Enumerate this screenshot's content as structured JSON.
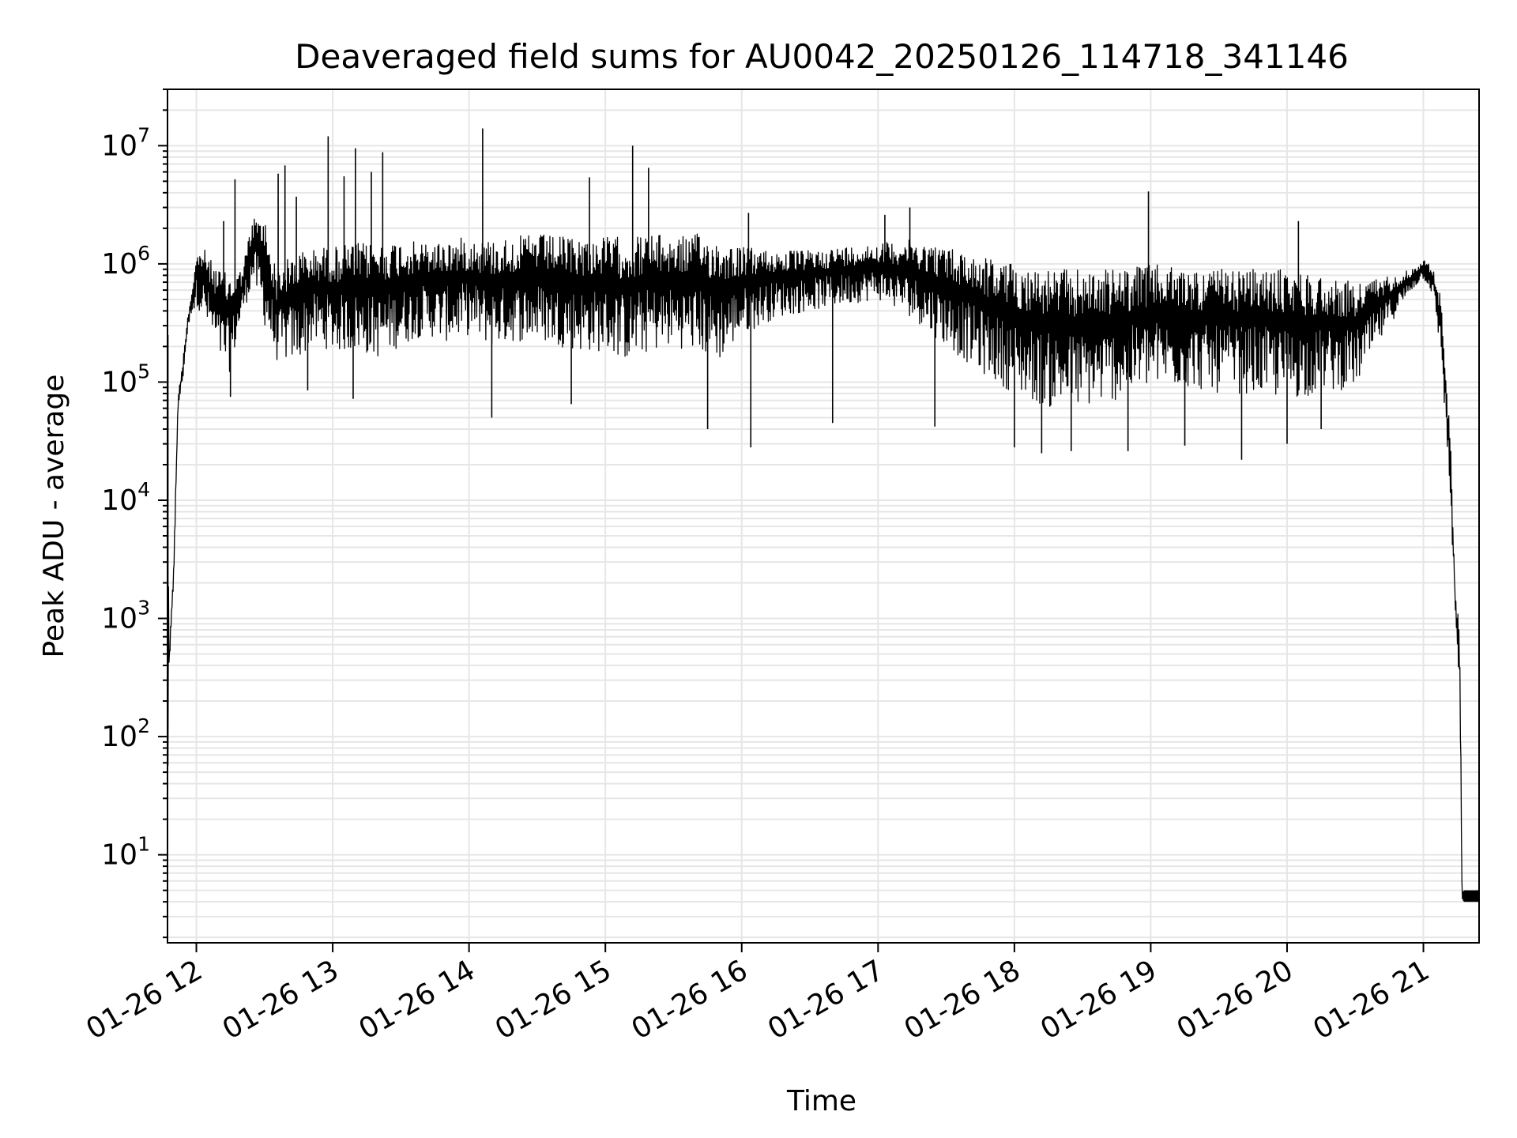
{
  "chart_data": {
    "type": "line",
    "title": "Deaveraged field sums for AU0042_20250126_114718_341146",
    "xlabel": "Time",
    "ylabel": "Peak ADU - average",
    "yscale": "log",
    "ylim": [
      1.8,
      30000000
    ],
    "xlim": [
      "2025-01-26 11:47:18",
      "2025-01-26 21:24:30"
    ],
    "grid": true,
    "legend": "none",
    "line_color": "#000000",
    "grid_color": "#e6e6e6",
    "x_ticks": [
      {
        "value": "2025-01-26 12:00",
        "label": "01-26 12"
      },
      {
        "value": "2025-01-26 13:00",
        "label": "01-26 13"
      },
      {
        "value": "2025-01-26 14:00",
        "label": "01-26 14"
      },
      {
        "value": "2025-01-26 15:00",
        "label": "01-26 15"
      },
      {
        "value": "2025-01-26 16:00",
        "label": "01-26 16"
      },
      {
        "value": "2025-01-26 17:00",
        "label": "01-26 17"
      },
      {
        "value": "2025-01-26 18:00",
        "label": "01-26 18"
      },
      {
        "value": "2025-01-26 19:00",
        "label": "01-26 19"
      },
      {
        "value": "2025-01-26 20:00",
        "label": "01-26 20"
      },
      {
        "value": "2025-01-26 21:00",
        "label": "01-26 21"
      }
    ],
    "y_ticks": [
      {
        "value": 10,
        "base": "10",
        "exp": "1"
      },
      {
        "value": 100,
        "base": "10",
        "exp": "2"
      },
      {
        "value": 1000,
        "base": "10",
        "exp": "3"
      },
      {
        "value": 10000,
        "base": "10",
        "exp": "4"
      },
      {
        "value": 100000,
        "base": "10",
        "exp": "5"
      },
      {
        "value": 1000000,
        "base": "10",
        "exp": "6"
      },
      {
        "value": 10000000,
        "base": "10",
        "exp": "7"
      }
    ],
    "series": [
      {
        "x": [
          "2025-01-26 11:47:18",
          "2025-01-26 11:48:00",
          "2025-01-26 11:50:00",
          "2025-01-26 11:52:00",
          "2025-01-26 11:54:00",
          "2025-01-26 11:56:00",
          "2025-01-26 11:58:00",
          "2025-01-26 12:00:00",
          "2025-01-26 12:03:00",
          "2025-01-26 12:06:00",
          "2025-01-26 12:10:00",
          "2025-01-26 12:15:00",
          "2025-01-26 12:20:00",
          "2025-01-26 12:25:00",
          "2025-01-26 12:30:00",
          "2025-01-26 12:35:00",
          "2025-01-26 12:40:00",
          "2025-01-26 12:45:00",
          "2025-01-26 12:50:00",
          "2025-01-26 12:55:00",
          "2025-01-26 13:00:00",
          "2025-01-26 13:10:00",
          "2025-01-26 13:20:00",
          "2025-01-26 13:30:00",
          "2025-01-26 13:40:00",
          "2025-01-26 13:50:00",
          "2025-01-26 14:00:00",
          "2025-01-26 14:10:00",
          "2025-01-26 14:20:00",
          "2025-01-26 14:30:00",
          "2025-01-26 14:40:00",
          "2025-01-26 14:50:00",
          "2025-01-26 15:00:00",
          "2025-01-26 15:10:00",
          "2025-01-26 15:20:00",
          "2025-01-26 15:30:00",
          "2025-01-26 15:40:00",
          "2025-01-26 15:50:00",
          "2025-01-26 16:00:00",
          "2025-01-26 16:15:00",
          "2025-01-26 16:30:00",
          "2025-01-26 16:45:00",
          "2025-01-26 17:00:00",
          "2025-01-26 17:15:00",
          "2025-01-26 17:30:00",
          "2025-01-26 17:45:00",
          "2025-01-26 18:00:00",
          "2025-01-26 18:15:00",
          "2025-01-26 18:30:00",
          "2025-01-26 18:45:00",
          "2025-01-26 19:00:00",
          "2025-01-26 19:15:00",
          "2025-01-26 19:30:00",
          "2025-01-26 19:45:00",
          "2025-01-26 20:00:00",
          "2025-01-26 20:15:00",
          "2025-01-26 20:30:00",
          "2025-01-26 20:45:00",
          "2025-01-26 20:55:00",
          "2025-01-26 21:00:00",
          "2025-01-26 21:04:00",
          "2025-01-26 21:08:00",
          "2025-01-26 21:12:00",
          "2025-01-26 21:14:00",
          "2025-01-26 21:16:00",
          "2025-01-26 21:17:00",
          "2025-01-26 21:18:00",
          "2025-01-26 21:24:30"
        ],
        "low": [
          4,
          300,
          2000,
          60000,
          100000,
          250000,
          400000,
          450000,
          350000,
          250000,
          150000,
          120000,
          350000,
          700000,
          300000,
          150000,
          150000,
          150000,
          200000,
          200000,
          180000,
          180000,
          160000,
          200000,
          250000,
          220000,
          250000,
          200000,
          220000,
          220000,
          200000,
          180000,
          180000,
          150000,
          180000,
          200000,
          180000,
          150000,
          250000,
          350000,
          400000,
          450000,
          500000,
          350000,
          200000,
          120000,
          80000,
          60000,
          60000,
          70000,
          90000,
          90000,
          80000,
          80000,
          70000,
          80000,
          90000,
          300000,
          600000,
          750000,
          550000,
          150000,
          8000,
          1200,
          150,
          4,
          4,
          4
        ],
        "high": [
          250000,
          500,
          3000,
          80000,
          150000,
          350000,
          600000,
          1200000,
          1400000,
          1100000,
          900000,
          800000,
          900000,
          2500000,
          2500000,
          900000,
          1100000,
          1300000,
          1300000,
          1400000,
          1400000,
          1500000,
          1500000,
          1600000,
          1500000,
          1600000,
          1700000,
          1600000,
          1700000,
          1800000,
          1700000,
          1700000,
          1700000,
          1700000,
          1800000,
          1700000,
          1800000,
          1600000,
          1400000,
          1300000,
          1300000,
          1400000,
          1500000,
          1600000,
          1400000,
          1200000,
          1000000,
          900000,
          900000,
          900000,
          1000000,
          900000,
          900000,
          900000,
          900000,
          800000,
          700000,
          800000,
          900000,
          1100000,
          950000,
          500000,
          30000,
          1600,
          1000,
          5,
          5,
          5
        ],
        "spikes": [
          {
            "x": "2025-01-26 11:47:30",
            "y": 250000
          },
          {
            "x": "2025-01-26 11:59:00",
            "y": 420000
          },
          {
            "x": "2025-01-26 12:12:00",
            "y": 2300000
          },
          {
            "x": "2025-01-26 12:17:00",
            "y": 5200000
          },
          {
            "x": "2025-01-26 12:36:00",
            "y": 5800000
          },
          {
            "x": "2025-01-26 12:39:00",
            "y": 6800000
          },
          {
            "x": "2025-01-26 12:44:00",
            "y": 3700000
          },
          {
            "x": "2025-01-26 12:58:00",
            "y": 12000000
          },
          {
            "x": "2025-01-26 13:05:00",
            "y": 5500000
          },
          {
            "x": "2025-01-26 13:10:00",
            "y": 9500000
          },
          {
            "x": "2025-01-26 13:17:00",
            "y": 6000000
          },
          {
            "x": "2025-01-26 13:22:00",
            "y": 8800000
          },
          {
            "x": "2025-01-26 14:06:00",
            "y": 14000000
          },
          {
            "x": "2025-01-26 14:53:00",
            "y": 5400000
          },
          {
            "x": "2025-01-26 15:12:00",
            "y": 10000000
          },
          {
            "x": "2025-01-26 15:19:00",
            "y": 6500000
          },
          {
            "x": "2025-01-26 16:03:00",
            "y": 2700000
          },
          {
            "x": "2025-01-26 17:03:00",
            "y": 2600000
          },
          {
            "x": "2025-01-26 17:14:00",
            "y": 3000000
          },
          {
            "x": "2025-01-26 18:59:00",
            "y": 4100000
          },
          {
            "x": "2025-01-26 20:05:00",
            "y": 2300000
          }
        ],
        "dips": [
          {
            "x": "2025-01-26 12:15:00",
            "y": 75000
          },
          {
            "x": "2025-01-26 12:49:00",
            "y": 85000
          },
          {
            "x": "2025-01-26 13:09:00",
            "y": 72000
          },
          {
            "x": "2025-01-26 14:10:00",
            "y": 50000
          },
          {
            "x": "2025-01-26 14:45:00",
            "y": 65000
          },
          {
            "x": "2025-01-26 15:45:00",
            "y": 40000
          },
          {
            "x": "2025-01-26 16:04:00",
            "y": 28000
          },
          {
            "x": "2025-01-26 16:40:00",
            "y": 45000
          },
          {
            "x": "2025-01-26 17:25:00",
            "y": 42000
          },
          {
            "x": "2025-01-26 18:00:00",
            "y": 28000
          },
          {
            "x": "2025-01-26 18:12:00",
            "y": 25000
          },
          {
            "x": "2025-01-26 18:25:00",
            "y": 26000
          },
          {
            "x": "2025-01-26 18:50:00",
            "y": 26000
          },
          {
            "x": "2025-01-26 19:15:00",
            "y": 29000
          },
          {
            "x": "2025-01-26 19:40:00",
            "y": 22000
          },
          {
            "x": "2025-01-26 20:00:00",
            "y": 30000
          },
          {
            "x": "2025-01-26 20:15:00",
            "y": 40000
          }
        ]
      }
    ]
  }
}
